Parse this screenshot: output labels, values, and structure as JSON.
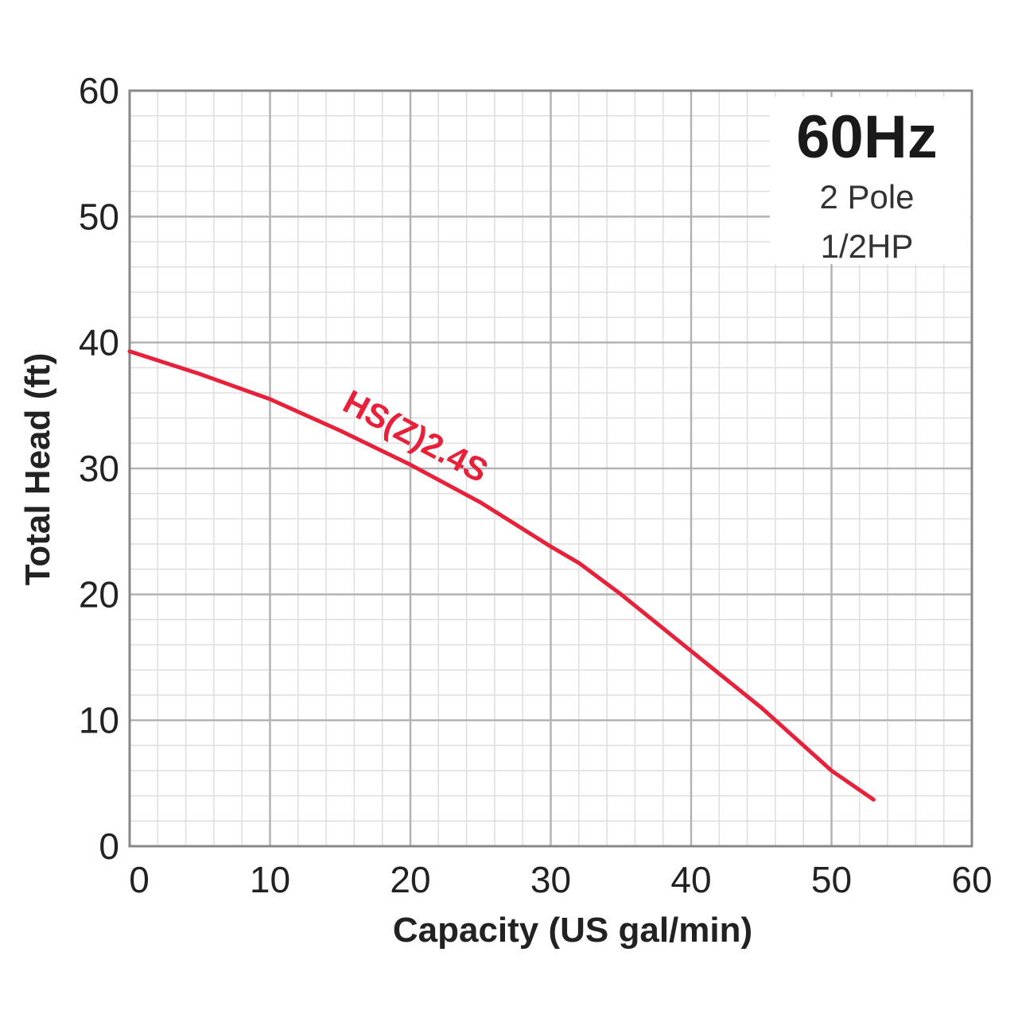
{
  "chart_data": {
    "type": "line",
    "title": "",
    "xlabel": "Capacity (US gal/min)",
    "ylabel": "Total Head (ft)",
    "xlim": [
      0,
      60
    ],
    "ylim": [
      0,
      60
    ],
    "x_ticks": [
      "0",
      "10",
      "20",
      "30",
      "40",
      "50",
      "60"
    ],
    "y_ticks": [
      "0",
      "10",
      "20",
      "30",
      "40",
      "50",
      "60"
    ],
    "grid": true,
    "minor_grid": true,
    "annotation": {
      "frequency": "60Hz",
      "poles": "2 Pole",
      "power": "1/2HP"
    },
    "series": [
      {
        "name": "HS(Z)2.4S",
        "color": "#e8213a",
        "points": [
          {
            "x": 0,
            "y": 39.3
          },
          {
            "x": 5,
            "y": 37.5
          },
          {
            "x": 10,
            "y": 35.5
          },
          {
            "x": 15,
            "y": 33
          },
          {
            "x": 20,
            "y": 30.3
          },
          {
            "x": 25,
            "y": 27.3
          },
          {
            "x": 30,
            "y": 23.8
          },
          {
            "x": 32,
            "y": 22.5
          },
          {
            "x": 35,
            "y": 20
          },
          {
            "x": 40,
            "y": 15.5
          },
          {
            "x": 45,
            "y": 11
          },
          {
            "x": 50,
            "y": 6
          },
          {
            "x": 53,
            "y": 3.7
          }
        ]
      }
    ]
  }
}
